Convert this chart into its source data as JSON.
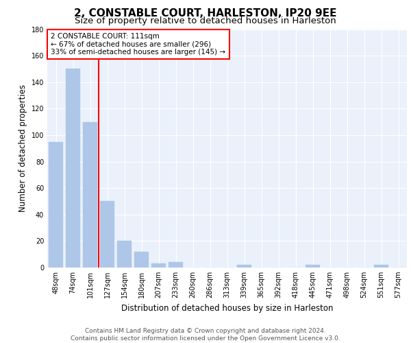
{
  "title": "2, CONSTABLE COURT, HARLESTON, IP20 9EE",
  "subtitle": "Size of property relative to detached houses in Harleston",
  "xlabel": "Distribution of detached houses by size in Harleston",
  "ylabel": "Number of detached properties",
  "categories": [
    "48sqm",
    "74sqm",
    "101sqm",
    "127sqm",
    "154sqm",
    "180sqm",
    "207sqm",
    "233sqm",
    "260sqm",
    "286sqm",
    "313sqm",
    "339sqm",
    "365sqm",
    "392sqm",
    "418sqm",
    "445sqm",
    "471sqm",
    "498sqm",
    "524sqm",
    "551sqm",
    "577sqm"
  ],
  "values": [
    95,
    150,
    110,
    50,
    20,
    12,
    3,
    4,
    0,
    0,
    0,
    2,
    0,
    0,
    0,
    2,
    0,
    0,
    0,
    2,
    0
  ],
  "bar_color": "#aec6e8",
  "bar_edge_color": "#aec6e8",
  "red_line_x": 2.5,
  "annotation_text": "2 CONSTABLE COURT: 111sqm\n← 67% of detached houses are smaller (296)\n33% of semi-detached houses are larger (145) →",
  "annotation_box_color": "white",
  "annotation_box_edge_color": "red",
  "red_line_color": "red",
  "ylim": [
    0,
    180
  ],
  "yticks": [
    0,
    20,
    40,
    60,
    80,
    100,
    120,
    140,
    160,
    180
  ],
  "bg_color": "#eaf1fb",
  "footer_text": "Contains HM Land Registry data © Crown copyright and database right 2024.\nContains public sector information licensed under the Open Government Licence v3.0.",
  "title_fontsize": 11,
  "subtitle_fontsize": 9.5,
  "xlabel_fontsize": 8.5,
  "ylabel_fontsize": 8.5,
  "tick_fontsize": 7,
  "annotation_fontsize": 7.5,
  "footer_fontsize": 6.5
}
